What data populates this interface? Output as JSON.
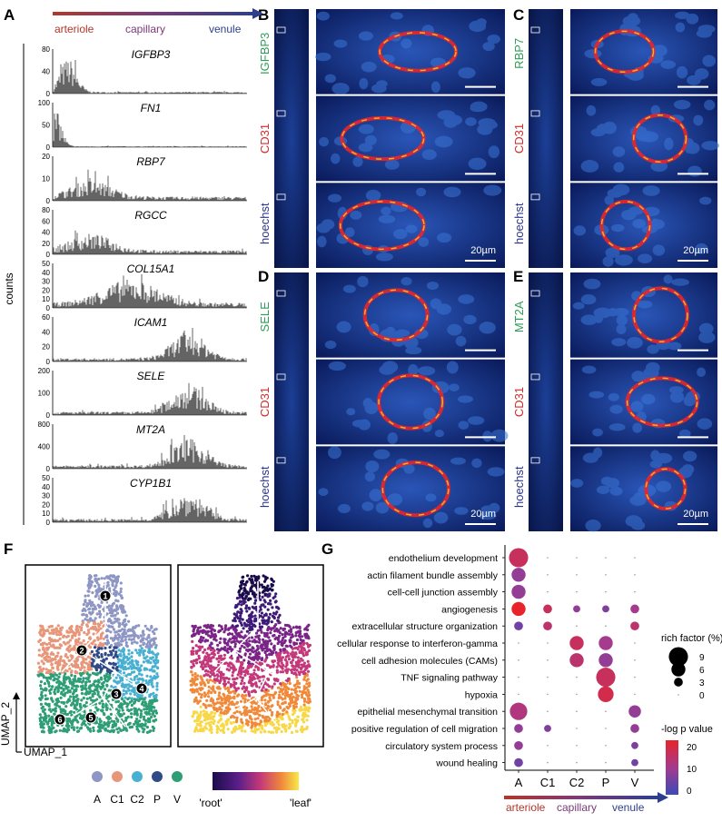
{
  "panel_letters": [
    "A",
    "B",
    "C",
    "D",
    "E",
    "F",
    "G"
  ],
  "panel_a": {
    "gradient_labels": {
      "left": "arteriole",
      "mid": "capillary",
      "right": "venule"
    },
    "ylabel": "counts",
    "genes": [
      {
        "name": "IGFBP3",
        "ticks": [
          "80",
          "40",
          "0"
        ],
        "profile": "early"
      },
      {
        "name": "FN1",
        "ticks": [
          "100",
          "50",
          "0"
        ],
        "profile": "very-early"
      },
      {
        "name": "RBP7",
        "ticks": [
          "20",
          "10",
          "0"
        ],
        "profile": "early-mid"
      },
      {
        "name": "RGCC",
        "ticks": [
          "80",
          "60",
          "40",
          "20",
          "0"
        ],
        "profile": "early-mid"
      },
      {
        "name": "COL15A1",
        "ticks": [
          "50",
          "40",
          "30",
          "20",
          "10",
          "0"
        ],
        "profile": "mid"
      },
      {
        "name": "ICAM1",
        "ticks": [
          "60",
          "40",
          "20",
          "0"
        ],
        "profile": "late"
      },
      {
        "name": "SELE",
        "ticks": [
          "200",
          "100",
          "0"
        ],
        "profile": "late"
      },
      {
        "name": "MT2A",
        "ticks": [
          "800",
          "400",
          "0"
        ],
        "profile": "late"
      },
      {
        "name": "CYP1B1",
        "ticks": [
          "50",
          "40",
          "30",
          "20",
          "10",
          "0"
        ],
        "profile": "late"
      }
    ]
  },
  "micrographs": [
    {
      "letter": "B",
      "marker": "IGFBP3",
      "marker_color": "#2e9e57",
      "scale": "20µm"
    },
    {
      "letter": "C",
      "marker": "RBP7",
      "marker_color": "#2e9e57",
      "scale": "20µm"
    },
    {
      "letter": "D",
      "marker": "SELE",
      "marker_color": "#2e9e57",
      "scale": "20µm"
    },
    {
      "letter": "E",
      "marker": "MT2A",
      "marker_color": "#2e9e57",
      "scale": "20µm"
    }
  ],
  "stain_labels": {
    "cd31": "CD31",
    "hoechst": "hoechst",
    "cd31_color": "#d42a2a",
    "hoechst_color": "#28338c"
  },
  "panel_f": {
    "xlabel": "UMAP_1",
    "ylabel": "UMAP_2",
    "cluster_legend": [
      {
        "label": "A",
        "color": "#8e96c4"
      },
      {
        "label": "C1",
        "color": "#e8967a"
      },
      {
        "label": "C2",
        "color": "#4ab0d2"
      },
      {
        "label": "P",
        "color": "#2f4a86"
      },
      {
        "label": "V",
        "color": "#2e9e76"
      }
    ],
    "node_labels": [
      "1",
      "2",
      "3",
      "4",
      "5",
      "6"
    ],
    "pseudotime_legend": {
      "left": "'root'",
      "right": "'leaf'"
    }
  },
  "chart_data": {
    "type": "dotplot",
    "categories": [
      "A",
      "C1",
      "C2",
      "P",
      "V"
    ],
    "terms": [
      "endothelium development",
      "actin filament bundle assembly",
      "cell-cell junction assembly",
      "angiogenesis",
      "extracellular structure organization",
      "cellular response to interferon-gamma",
      "cell adhesion molecules (CAMs)",
      "TNF signaling pathway",
      "hypoxia",
      "epithelial mesenchymal transition",
      "positive regulation of cell migration",
      "circulatory system process",
      "wound healing"
    ],
    "rich_factor": [
      [
        9,
        0,
        0,
        0,
        0
      ],
      [
        6,
        0,
        0,
        0,
        0
      ],
      [
        6,
        0,
        0,
        0,
        0
      ],
      [
        6,
        3,
        2,
        2,
        3
      ],
      [
        3,
        3,
        0,
        0,
        3
      ],
      [
        0,
        0,
        6,
        6,
        0
      ],
      [
        0,
        0,
        6,
        6,
        0
      ],
      [
        0,
        0,
        0,
        9,
        0
      ],
      [
        0,
        0,
        0,
        7,
        0
      ],
      [
        8,
        0,
        0,
        0,
        5
      ],
      [
        3,
        2,
        0,
        0,
        3
      ],
      [
        3,
        0,
        0,
        0,
        2
      ],
      [
        3,
        0,
        0,
        0,
        2
      ]
    ],
    "neg_log_p": [
      [
        18,
        0,
        0,
        0,
        0
      ],
      [
        10,
        0,
        0,
        0,
        0
      ],
      [
        10,
        0,
        0,
        0,
        0
      ],
      [
        24,
        18,
        10,
        8,
        12
      ],
      [
        6,
        16,
        0,
        0,
        16
      ],
      [
        0,
        0,
        18,
        12,
        0
      ],
      [
        0,
        0,
        16,
        10,
        0
      ],
      [
        0,
        0,
        0,
        18,
        0
      ],
      [
        0,
        0,
        0,
        20,
        0
      ],
      [
        14,
        0,
        0,
        0,
        10
      ],
      [
        10,
        8,
        0,
        0,
        10
      ],
      [
        10,
        0,
        0,
        0,
        8
      ],
      [
        6,
        0,
        0,
        0,
        6
      ]
    ],
    "size_legend": {
      "title": "rich factor (%)",
      "values": [
        "9",
        "6",
        "3",
        "0"
      ]
    },
    "color_legend": {
      "title": "-log p value",
      "ticks": [
        "20",
        "10",
        "0"
      ]
    },
    "gradient_labels": {
      "left": "arteriole",
      "mid": "capillary",
      "right": "venule"
    }
  }
}
